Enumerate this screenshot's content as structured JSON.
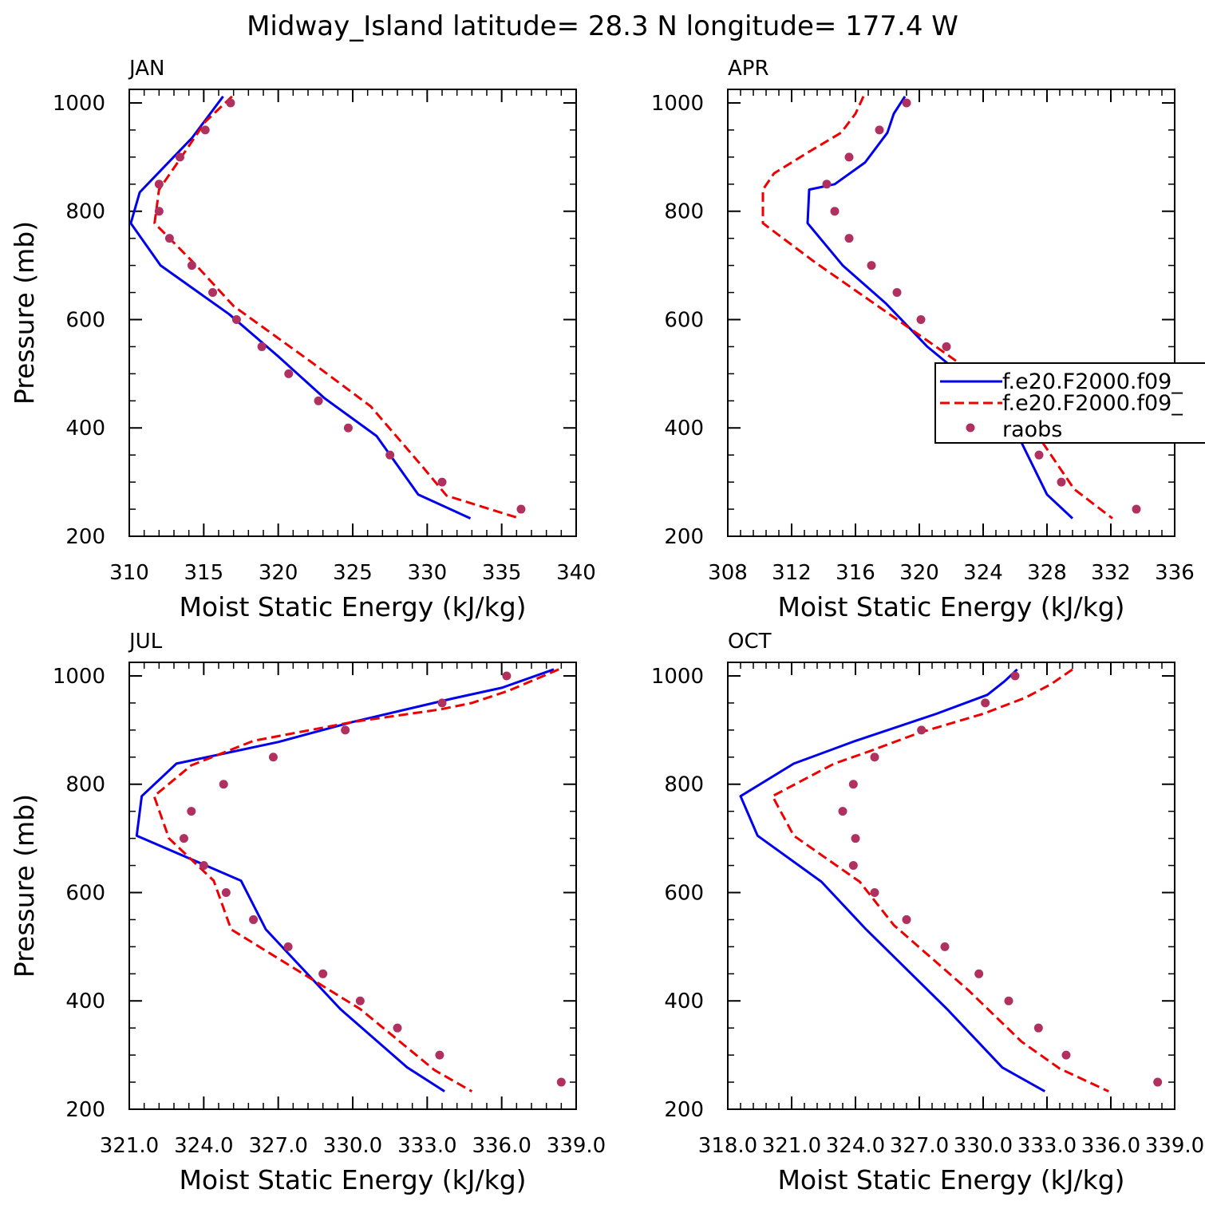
{
  "title": "Midway_Island  latitude= 28.3 N longitude= 177.4 W",
  "colors": {
    "model1": "#0000ee",
    "model2": "#ee0000",
    "raobs": "#b03060"
  },
  "legend": {
    "placement": "right side of APR panel",
    "entries": [
      "f.e20.F2000.f09_",
      "f.e20.F2000.f09_",
      "raobs"
    ]
  },
  "chart_data": [
    {
      "type": "line",
      "panel_label": "JAN",
      "xlabel": "Moist Static Energy (kJ/kg)",
      "ylabel": "Pressure (mb)",
      "xlim": [
        310,
        340
      ],
      "ylim": [
        1025,
        200
      ],
      "xticks": [
        310,
        315,
        320,
        325,
        330,
        335,
        340
      ],
      "xtick_labels": [
        "310",
        "315",
        "320",
        "325",
        "330",
        "335",
        "340"
      ],
      "yticks": [
        1000,
        800,
        600,
        400,
        200
      ],
      "ytick_labels": [
        "1000",
        "800",
        "600",
        "400",
        "200"
      ],
      "series": [
        {
          "key": "model1",
          "style": "solid",
          "x": [
            316.3,
            314.2,
            312.1,
            310.7,
            310.1,
            312.1,
            316.7,
            320.0,
            323.1,
            326.6,
            329.4,
            332.9
          ],
          "y": [
            1012,
            935,
            875,
            835,
            778,
            700,
            610,
            532,
            455,
            385,
            277,
            233
          ]
        },
        {
          "key": "model2",
          "style": "dashed",
          "x": [
            316.9,
            315.1,
            313.5,
            312.0,
            311.7,
            314.5,
            317.0,
            322.2,
            326.2,
            329.7,
            331.3,
            336.2
          ],
          "y": [
            1012,
            965,
            900,
            840,
            778,
            700,
            625,
            522,
            440,
            328,
            275,
            233
          ]
        },
        {
          "key": "raobs",
          "style": "markers",
          "x": [
            316.8,
            315.1,
            313.4,
            312.0,
            312.0,
            312.7,
            314.2,
            315.6,
            317.2,
            318.9,
            320.7,
            322.7,
            324.7,
            327.5,
            331.0,
            336.3
          ],
          "y": [
            1000,
            950,
            900,
            850,
            800,
            750,
            700,
            650,
            600,
            550,
            500,
            450,
            400,
            350,
            300,
            250
          ]
        }
      ]
    },
    {
      "type": "line",
      "panel_label": "APR",
      "xlabel": "Moist Static Energy (kJ/kg)",
      "ylabel": "",
      "xlim": [
        308,
        336
      ],
      "ylim": [
        1025,
        200
      ],
      "xticks": [
        308,
        312,
        316,
        320,
        324,
        328,
        332,
        336
      ],
      "xtick_labels": [
        "308",
        "312",
        "316",
        "320",
        "324",
        "328",
        "332",
        "336"
      ],
      "yticks": [
        1000,
        800,
        600,
        400,
        200
      ],
      "ytick_labels": [
        "1000",
        "800",
        "600",
        "400",
        "200"
      ],
      "series": [
        {
          "key": "model1",
          "style": "solid",
          "x": [
            319.1,
            318.4,
            318.0,
            316.6,
            314.7,
            313.1,
            313.0,
            315.2,
            317.9,
            320.5,
            323.8,
            326.2,
            328.0,
            329.6
          ],
          "y": [
            1012,
            980,
            945,
            890,
            850,
            840,
            778,
            700,
            630,
            550,
            470,
            385,
            277,
            233
          ]
        },
        {
          "key": "model2",
          "style": "dashed",
          "x": [
            316.5,
            316.0,
            315.1,
            313.1,
            310.9,
            310.2,
            310.2,
            313.5,
            317.4,
            320.8,
            324.4,
            327.1,
            329.7,
            332.1
          ],
          "y": [
            1012,
            980,
            945,
            910,
            870,
            840,
            778,
            705,
            625,
            555,
            480,
            400,
            287,
            233
          ]
        },
        {
          "key": "raobs",
          "style": "markers",
          "x": [
            319.2,
            317.5,
            315.6,
            314.2,
            314.7,
            315.6,
            317.0,
            318.6,
            320.1,
            321.7,
            323.2,
            324.6,
            326.0,
            327.5,
            328.9,
            333.6
          ],
          "y": [
            1000,
            950,
            900,
            850,
            800,
            750,
            700,
            650,
            600,
            550,
            500,
            450,
            400,
            350,
            300,
            250
          ]
        }
      ]
    },
    {
      "type": "line",
      "panel_label": "JUL",
      "xlabel": "Moist Static Energy (kJ/kg)",
      "ylabel": "Pressure (mb)",
      "xlim": [
        321.0,
        339.0
      ],
      "ylim": [
        1025,
        200
      ],
      "xticks": [
        321,
        324,
        327,
        330,
        333,
        336,
        339
      ],
      "xtick_labels": [
        "321.0",
        "324.0",
        "327.0",
        "330.0",
        "333.0",
        "336.0",
        "339.0"
      ],
      "yticks": [
        1000,
        800,
        600,
        400,
        200
      ],
      "ytick_labels": [
        "1000",
        "800",
        "600",
        "400",
        "200"
      ],
      "series": [
        {
          "key": "model1",
          "style": "solid",
          "x": [
            338.1,
            336.0,
            334.0,
            330.0,
            327.0,
            322.9,
            321.5,
            321.3,
            325.5,
            326.5,
            329.5,
            332.2,
            333.7
          ],
          "y": [
            1012,
            978,
            958,
            915,
            878,
            838,
            778,
            705,
            622,
            532,
            385,
            277,
            233
          ]
        },
        {
          "key": "model2",
          "style": "dashed",
          "x": [
            338.3,
            336.3,
            334.8,
            333.5,
            330.0,
            326.0,
            323.5,
            322.0,
            322.6,
            324.4,
            325.1,
            330.3,
            333.3,
            334.8
          ],
          "y": [
            1012,
            973,
            950,
            938,
            915,
            880,
            835,
            778,
            700,
            622,
            532,
            385,
            272,
            233
          ]
        },
        {
          "key": "raobs",
          "style": "markers",
          "x": [
            336.2,
            333.6,
            329.7,
            326.8,
            324.8,
            323.5,
            323.2,
            324.0,
            324.9,
            326.0,
            327.4,
            328.8,
            330.3,
            331.8,
            333.5,
            338.4
          ],
          "y": [
            1000,
            950,
            900,
            850,
            800,
            750,
            700,
            650,
            600,
            550,
            500,
            450,
            400,
            350,
            300,
            250
          ]
        }
      ]
    },
    {
      "type": "line",
      "panel_label": "OCT",
      "xlabel": "Moist Static Energy (kJ/kg)",
      "ylabel": "",
      "xlim": [
        318.0,
        339.0
      ],
      "ylim": [
        1025,
        200
      ],
      "xticks": [
        318,
        321,
        324,
        327,
        330,
        333,
        336,
        339
      ],
      "xtick_labels": [
        "318.0",
        "321.0",
        "324.0",
        "327.0",
        "330.0",
        "333.0",
        "336.0",
        "339.0"
      ],
      "yticks": [
        1000,
        800,
        600,
        400,
        200
      ],
      "ytick_labels": [
        "1000",
        "800",
        "600",
        "400",
        "200"
      ],
      "series": [
        {
          "key": "model1",
          "style": "solid",
          "x": [
            331.6,
            331.0,
            330.2,
            327.8,
            324.0,
            321.1,
            318.6,
            319.4,
            322.4,
            324.5,
            328.3,
            330.9,
            332.9
          ],
          "y": [
            1012,
            990,
            965,
            930,
            880,
            838,
            778,
            705,
            620,
            532,
            385,
            277,
            233
          ]
        },
        {
          "key": "model2",
          "style": "dashed",
          "x": [
            334.2,
            333.2,
            332.0,
            330.0,
            327.0,
            324.6,
            323.0,
            320.1,
            321.1,
            324.2,
            325.8,
            329.3,
            331.8,
            333.6,
            335.9
          ],
          "y": [
            1012,
            985,
            960,
            930,
            895,
            860,
            838,
            778,
            705,
            620,
            540,
            420,
            325,
            275,
            233
          ]
        },
        {
          "key": "raobs",
          "style": "markers",
          "x": [
            331.5,
            330.1,
            327.1,
            324.9,
            323.9,
            323.4,
            324.0,
            323.9,
            324.9,
            326.4,
            328.2,
            329.8,
            331.2,
            332.6,
            333.9,
            338.2
          ],
          "y": [
            1000,
            950,
            900,
            850,
            800,
            750,
            700,
            650,
            600,
            550,
            500,
            450,
            400,
            350,
            300,
            250
          ]
        }
      ]
    }
  ]
}
